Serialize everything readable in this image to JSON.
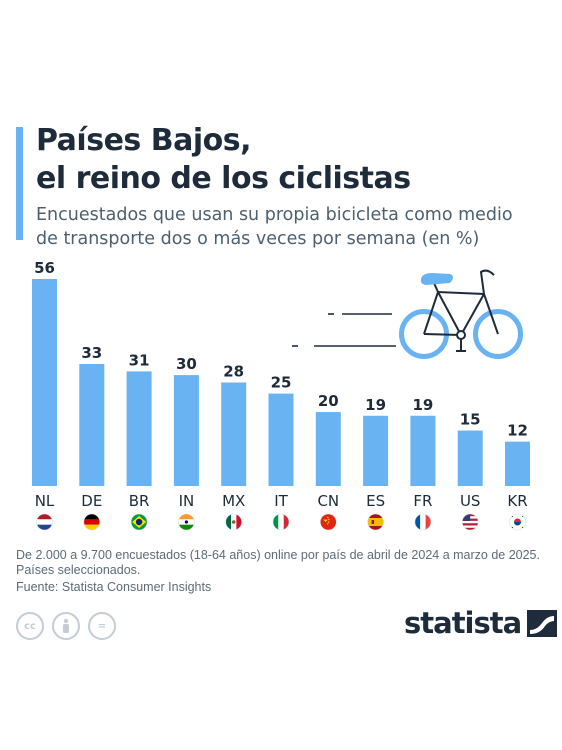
{
  "header": {
    "title_line1": "Países Bajos,",
    "title_line2": "el reino de los ciclistas",
    "subtitle_line1": "Encuestados que usan su propia bicicleta como medio",
    "subtitle_line2": "de transporte dos o más veces por semana (en %)"
  },
  "chart_data": {
    "type": "bar",
    "categories": [
      "NL",
      "DE",
      "BR",
      "IN",
      "MX",
      "IT",
      "CN",
      "ES",
      "FR",
      "US",
      "KR"
    ],
    "values": [
      56,
      33,
      31,
      30,
      28,
      25,
      20,
      19,
      19,
      15,
      12
    ],
    "ylim": [
      0,
      56
    ],
    "bar_color": "#69b3f2",
    "label_color": "#1d2b3a",
    "grid": false,
    "title": "",
    "xlabel": "",
    "ylabel": ""
  },
  "flags": [
    "netherlands-flag",
    "germany-flag",
    "brazil-flag",
    "india-flag",
    "mexico-flag",
    "italy-flag",
    "china-flag",
    "spain-flag",
    "france-flag",
    "usa-flag",
    "south-korea-flag"
  ],
  "illustration": {
    "icon": "bicycle-icon",
    "color": "#69b3f2",
    "line_color": "#1d2b3a"
  },
  "footer": {
    "note_line1": "De 2.000 a 9.700 encuestados (18-64 años) online por país de abril de 2024 a marzo de 2025.",
    "note_line2": "Países seleccionados.",
    "source": "Fuente: Statista Consumer Insights",
    "license_icons": [
      {
        "name": "creative-commons-icon",
        "glyph": "cc"
      },
      {
        "name": "attribution-icon",
        "glyph": ""
      },
      {
        "name": "no-derivatives-icon",
        "glyph": "="
      }
    ],
    "brand": "statista",
    "brand_color": "#1d2b3a"
  }
}
